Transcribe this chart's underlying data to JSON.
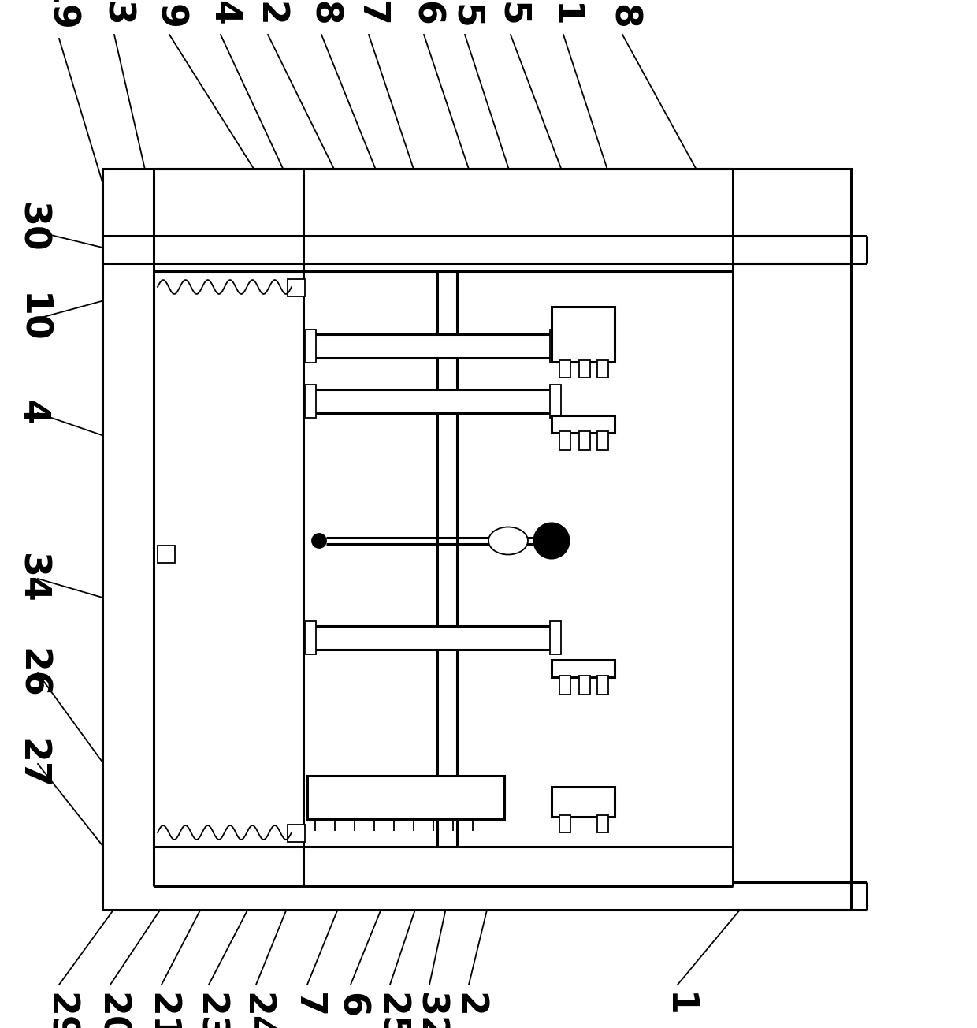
{
  "bg_color": "#ffffff",
  "line_color": "#000000",
  "lw": 2.2,
  "tlw": 1.3,
  "fig_width": 12.4,
  "fig_height": 13.04
}
